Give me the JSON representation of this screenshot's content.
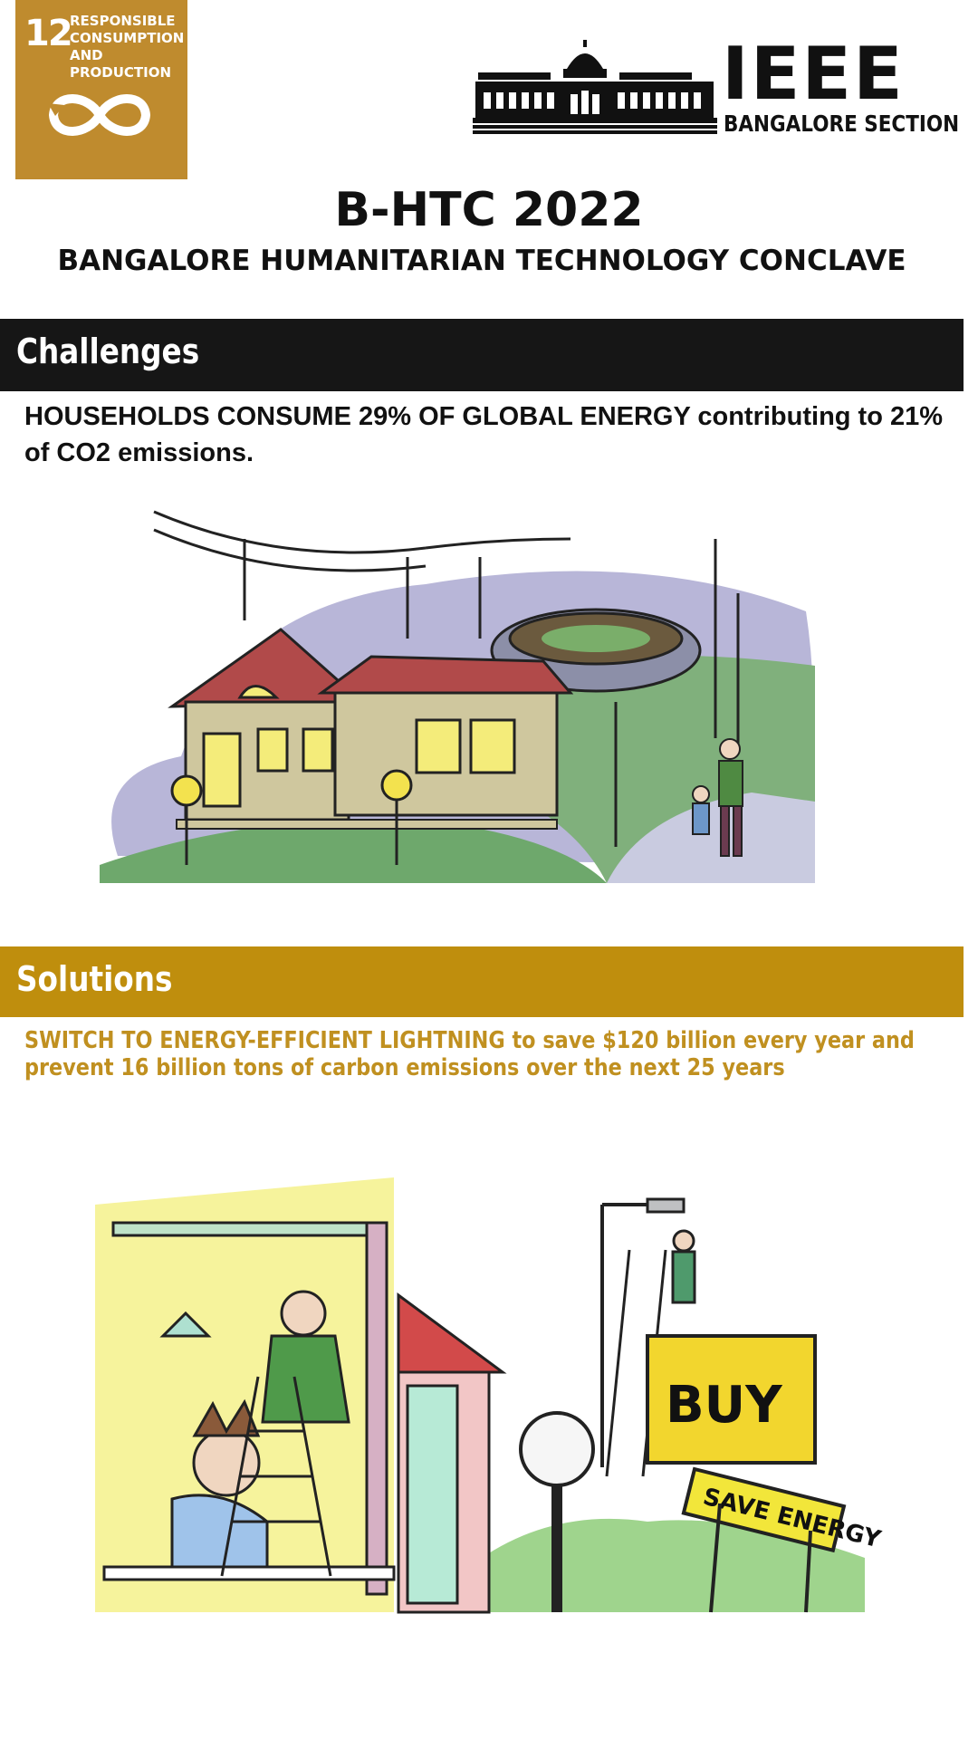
{
  "sdg_badge": {
    "number": "12",
    "label": "RESPONSIBLE CONSUMPTION AND PRODUCTION",
    "icon": "infinity-loop-icon",
    "color": "#bf8b2e"
  },
  "ieee_logo": {
    "word": "IEEE",
    "section": "BANGALORE SECTION",
    "icon": "palace-building-icon"
  },
  "event": {
    "title": "B-HTC 2022",
    "subtitle": "BANGALORE HUMANITARIAN TECHNOLOGY CONCLAVE"
  },
  "challenges": {
    "heading": "Challenges",
    "band_color": "#161616",
    "text": "HOUSEHOLDS CONSUME 29% OF GLOBAL ENERGY contributing to 21% of CO2 emissions."
  },
  "solutions": {
    "heading": "Solutions",
    "band_color": "#bf8e0d",
    "text_color": "#c09020",
    "text": "SWITCH TO ENERGY-EFFICIENT LIGHTNING to save $120 billion every year and prevent 16 billion tons of carbon emissions over the next 25 years"
  },
  "illustration_solutions": {
    "sign_main": "BUY",
    "sign_sub": "SAVE ENERGY"
  }
}
